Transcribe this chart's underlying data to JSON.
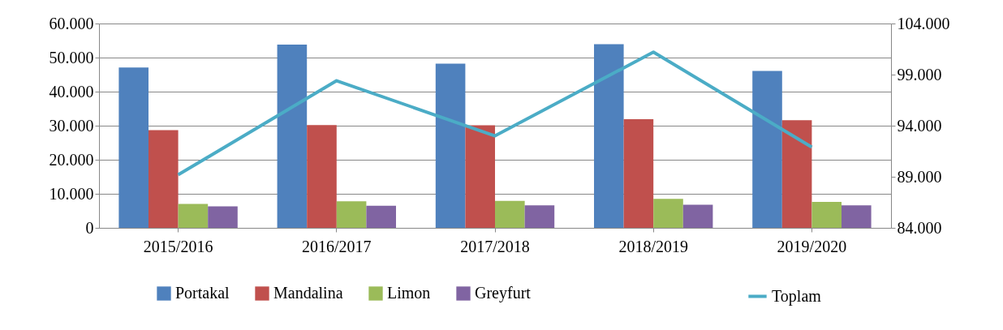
{
  "chart_data": {
    "type": "bar",
    "categories": [
      "2015/2016",
      "2016/2017",
      "2017/2018",
      "2018/2019",
      "2019/2020"
    ],
    "series": [
      {
        "name": "Portakal",
        "color": "#4f81bd",
        "values": [
          47100,
          53800,
          48200,
          53900,
          46100
        ]
      },
      {
        "name": "Mandalina",
        "color": "#c0504d",
        "values": [
          28700,
          30200,
          30100,
          31900,
          31600
        ]
      },
      {
        "name": "Limon",
        "color": "#9bbb59",
        "values": [
          7000,
          7800,
          7900,
          8500,
          7600
        ]
      },
      {
        "name": "Greyfurt",
        "color": "#8064a2",
        "values": [
          6300,
          6500,
          6600,
          6800,
          6600
        ]
      },
      {
        "name": "Toplam",
        "type": "line",
        "axis": "y2",
        "color": "#4bacc6",
        "values": [
          89200,
          98400,
          93000,
          101200,
          91900
        ]
      }
    ],
    "ylim": [
      0,
      60000
    ],
    "yticks": [
      0,
      {
        "value": 10000,
        "label": "10.000"
      },
      {
        "value": 20000,
        "label": "20.000"
      },
      {
        "value": 30000,
        "label": "30.000"
      },
      {
        "value": 40000,
        "label": "40.000"
      },
      {
        "value": 50000,
        "label": "50.000"
      },
      {
        "value": 60000,
        "label": "60.000"
      }
    ],
    "y2lim": [
      84000,
      104000
    ],
    "y2ticks": [
      {
        "value": 84000,
        "label": "84.000"
      },
      {
        "value": 89000,
        "label": "89.000"
      },
      {
        "value": 94000,
        "label": "94.000"
      },
      {
        "value": 99000,
        "label": "99.000"
      },
      {
        "value": 104000,
        "label": "104.000"
      }
    ],
    "grid": "y",
    "legend": "bottom"
  }
}
